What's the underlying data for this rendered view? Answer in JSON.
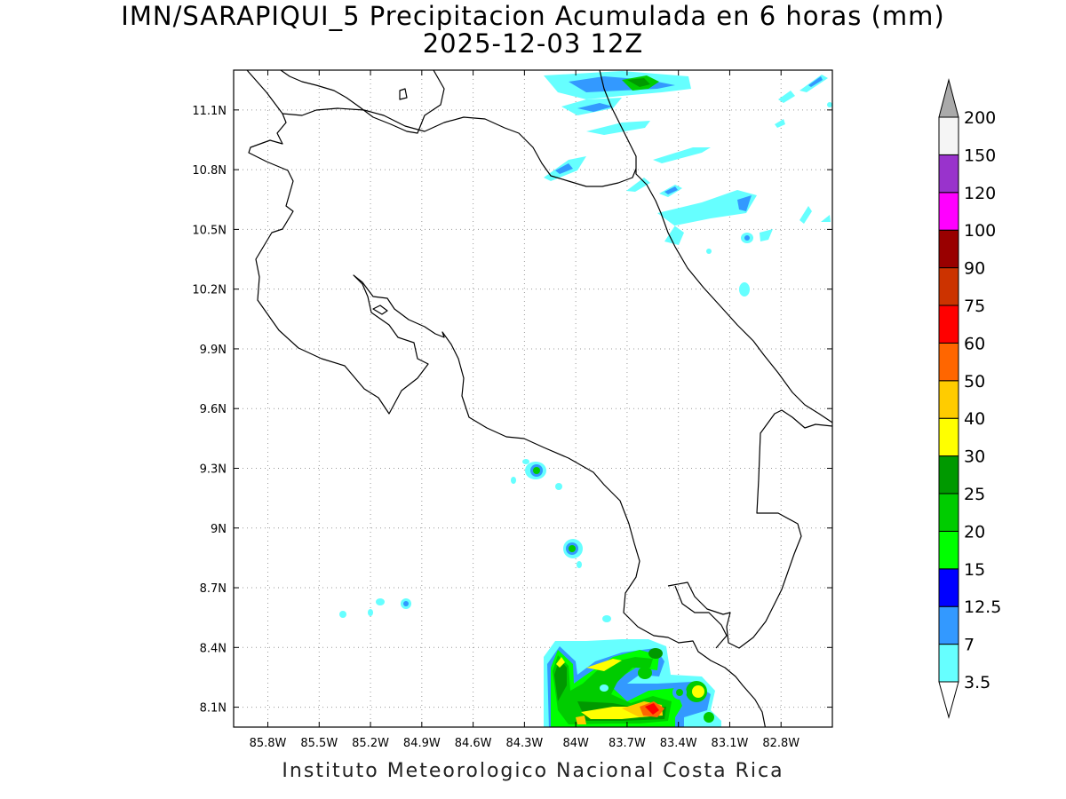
{
  "title_line1": "IMN/SARAPIQUI_5 Precipitacion Acumulada en 6 horas (mm)",
  "title_line2": "2025-12-03 12Z",
  "footer": "Instituto Meteorologico Nacional Costa Rica",
  "map": {
    "lon_range": [
      -86.0,
      -82.5
    ],
    "lat_range": [
      8.0,
      11.3
    ],
    "lon_ticks": [
      "85.8W",
      "85.5W",
      "85.2W",
      "84.9W",
      "84.6W",
      "84.3W",
      "84W",
      "83.7W",
      "83.4W",
      "83.1W",
      "82.8W"
    ],
    "lat_ticks": [
      "8.1N",
      "8.4N",
      "8.7N",
      "9N",
      "9.3N",
      "9.6N",
      "9.9N",
      "10.2N",
      "10.5N",
      "10.8N",
      "11.1N"
    ],
    "grid": "dotted"
  },
  "colorbar": {
    "labels": [
      "3.5",
      "7",
      "12.5",
      "15",
      "20",
      "25",
      "30",
      "40",
      "50",
      "60",
      "75",
      "90",
      "100",
      "120",
      "150",
      "200"
    ],
    "colors": [
      "#66ffff",
      "#3399ff",
      "#0000ff",
      "#00ff00",
      "#00cc00",
      "#009900",
      "#ffff00",
      "#ffcc00",
      "#ff6600",
      "#ff0000",
      "#cc3300",
      "#990000",
      "#ff00ff",
      "#9933cc",
      "#f5f5f5",
      "#aaaaaa"
    ]
  }
}
